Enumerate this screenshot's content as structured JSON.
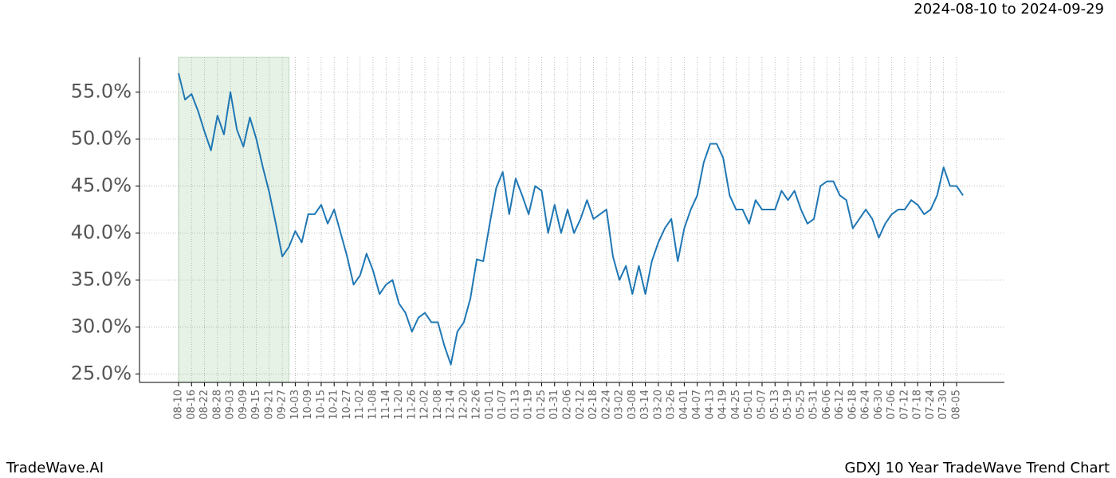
{
  "chart_data": {
    "type": "line",
    "title": "GDXJ 10 Year TradeWave Trend Chart",
    "subtitle": "2024-08-10 to 2024-09-29",
    "brand": "TradeWave.AI",
    "color": "#1f77b4",
    "highlight": {
      "start": "08-10",
      "end": "09-30",
      "color": "#e6f2e6"
    },
    "grid": true,
    "x": [
      "08-10",
      "08-13",
      "08-16",
      "08-19",
      "08-22",
      "08-25",
      "08-28",
      "08-31",
      "09-03",
      "09-06",
      "09-09",
      "09-12",
      "09-15",
      "09-18",
      "09-21",
      "09-24",
      "09-27",
      "09-30",
      "10-03",
      "10-06",
      "10-09",
      "10-12",
      "10-15",
      "10-18",
      "10-21",
      "10-24",
      "10-27",
      "10-30",
      "11-02",
      "11-05",
      "11-08",
      "11-11",
      "11-14",
      "11-17",
      "11-20",
      "11-23",
      "11-26",
      "11-29",
      "12-02",
      "12-05",
      "12-08",
      "12-11",
      "12-14",
      "12-17",
      "12-20",
      "12-23",
      "12-26",
      "12-29",
      "01-01",
      "01-04",
      "01-07",
      "01-10",
      "01-13",
      "01-16",
      "01-19",
      "01-22",
      "01-25",
      "01-28",
      "01-31",
      "02-03",
      "02-06",
      "02-09",
      "02-12",
      "02-15",
      "02-18",
      "02-21",
      "02-24",
      "02-27",
      "03-02",
      "03-05",
      "03-08",
      "03-11",
      "03-14",
      "03-17",
      "03-20",
      "03-23",
      "03-26",
      "03-29",
      "04-01",
      "04-04",
      "04-07",
      "04-10",
      "04-13",
      "04-16",
      "04-19",
      "04-22",
      "04-25",
      "04-28",
      "05-01",
      "05-04",
      "05-07",
      "05-10",
      "05-13",
      "05-16",
      "05-19",
      "05-22",
      "05-25",
      "05-28",
      "05-31",
      "06-03",
      "06-06",
      "06-09",
      "06-12",
      "06-15",
      "06-18",
      "06-21",
      "06-24",
      "06-27",
      "06-30",
      "07-03",
      "07-06",
      "07-09",
      "07-12",
      "07-15",
      "07-18",
      "07-21",
      "07-24",
      "07-27",
      "07-30",
      "08-02",
      "08-05",
      "08-08"
    ],
    "values": [
      57.0,
      54.2,
      54.8,
      53.0,
      50.8,
      48.8,
      52.5,
      50.5,
      55.0,
      51.0,
      49.2,
      52.3,
      50.0,
      47.0,
      44.3,
      41.0,
      37.5,
      38.5,
      40.2,
      39.0,
      42.0,
      42.0,
      43.0,
      41.0,
      42.5,
      40.0,
      37.5,
      34.5,
      35.5,
      37.8,
      36.0,
      33.5,
      34.5,
      35.0,
      32.5,
      31.5,
      29.5,
      31.0,
      31.5,
      30.5,
      30.5,
      28.0,
      26.0,
      29.5,
      30.5,
      33.0,
      37.2,
      37.0,
      41.0,
      44.8,
      46.5,
      42.0,
      45.8,
      44.0,
      42.0,
      45.0,
      44.5,
      40.0,
      43.0,
      40.0,
      42.5,
      40.0,
      41.5,
      43.5,
      41.5,
      42.0,
      42.5,
      37.5,
      35.0,
      36.5,
      33.5,
      36.5,
      33.5,
      37.0,
      39.0,
      40.5,
      41.5,
      37.0,
      40.5,
      42.5,
      44.0,
      47.5,
      49.5,
      49.5,
      48.0,
      44.0,
      42.5,
      42.5,
      41.0,
      43.5,
      42.5,
      42.5,
      42.5,
      44.5,
      43.5,
      44.5,
      42.5,
      41.0,
      41.5,
      45.0,
      45.5,
      45.5,
      44.0,
      43.5,
      40.5,
      41.5,
      42.5,
      41.5,
      39.5,
      41.0,
      42.0,
      42.5,
      42.5,
      43.5,
      43.0,
      42.0,
      42.5,
      44.0,
      47.0,
      45.0,
      45.0,
      44.0
    ],
    "xticks": [
      "08-10",
      "08-16",
      "08-22",
      "08-28",
      "09-03",
      "09-09",
      "09-15",
      "09-21",
      "09-27",
      "10-03",
      "10-09",
      "10-15",
      "10-21",
      "10-27",
      "11-02",
      "11-08",
      "11-14",
      "11-20",
      "11-26",
      "12-02",
      "12-08",
      "12-14",
      "12-20",
      "12-26",
      "01-01",
      "01-07",
      "01-13",
      "01-19",
      "01-25",
      "01-31",
      "02-06",
      "02-12",
      "02-18",
      "02-24",
      "03-02",
      "03-08",
      "03-14",
      "03-20",
      "03-26",
      "04-01",
      "04-07",
      "04-13",
      "04-19",
      "04-25",
      "05-01",
      "05-07",
      "05-13",
      "05-19",
      "05-25",
      "05-31",
      "06-06",
      "06-12",
      "06-18",
      "06-24",
      "06-30",
      "07-06",
      "07-12",
      "07-18",
      "07-24",
      "07-30",
      "08-05"
    ],
    "ylim": [
      24.1,
      58.7
    ],
    "yticks": [
      {
        "value": 25,
        "label": "25.0%"
      },
      {
        "value": 30,
        "label": "30.0%"
      },
      {
        "value": 35,
        "label": "35.0%"
      },
      {
        "value": 40,
        "label": "40.0%"
      },
      {
        "value": 45,
        "label": "45.0%"
      },
      {
        "value": 50,
        "label": "50.0%"
      },
      {
        "value": 55,
        "label": "55.0%"
      }
    ]
  }
}
